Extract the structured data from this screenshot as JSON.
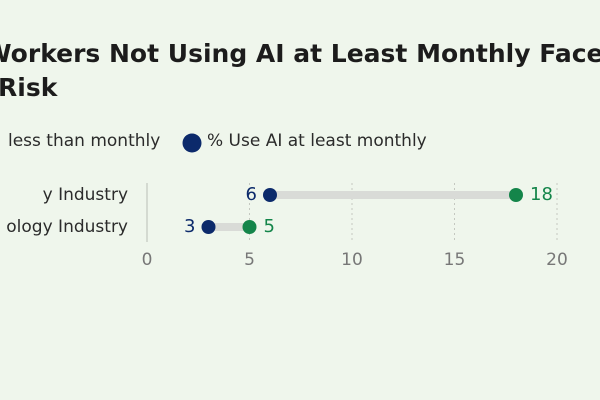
{
  "chart_data": {
    "type": "dumbbell",
    "title": [
      "Workers Not Using AI at Least Monthly Face Tr",
      "Risk"
    ],
    "categories": [
      "y Industry",
      "ology Industry"
    ],
    "series": [
      {
        "name": "less than monthly",
        "color": "#14854a",
        "values": [
          18,
          5
        ]
      },
      {
        "name": "% Use AI at least monthly",
        "color": "#0c2a6b",
        "values": [
          6,
          3
        ]
      }
    ],
    "xlim": [
      0,
      20
    ],
    "xticks": [
      0,
      5,
      10,
      15,
      20
    ],
    "grid": true
  }
}
